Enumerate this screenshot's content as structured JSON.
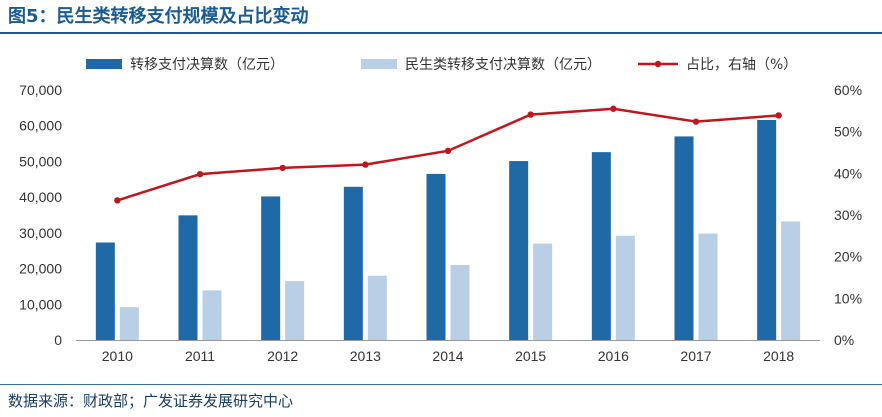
{
  "figure": {
    "title": "图5：民生类转移支付规模及占比变动",
    "source": "数据来源：财政部；广发证券发展研究中心"
  },
  "chart_data": {
    "type": "bar",
    "categories": [
      "2010",
      "2011",
      "2012",
      "2013",
      "2014",
      "2015",
      "2016",
      "2017",
      "2018"
    ],
    "series": [
      {
        "name": "转移支付决算数（亿元）",
        "type": "bar",
        "axis": "left",
        "color": "#1f69a6",
        "values": [
          27300,
          34900,
          40200,
          42900,
          46500,
          50100,
          52600,
          57000,
          61600
        ]
      },
      {
        "name": "民生类转移支付决算数（亿元）",
        "type": "bar",
        "axis": "left",
        "color": "#b9cfe6",
        "values": [
          9200,
          13900,
          16500,
          18000,
          21000,
          27000,
          29200,
          29800,
          33200
        ]
      },
      {
        "name": "占比，右轴（%）",
        "type": "line",
        "axis": "right",
        "color": "#c0161d",
        "values": [
          33.5,
          39.8,
          41.3,
          42.1,
          45.4,
          54.1,
          55.5,
          52.4,
          53.9
        ]
      }
    ],
    "y_left": {
      "min": 0,
      "max": 70000,
      "ticks": [
        "0",
        "10,000",
        "20,000",
        "30,000",
        "40,000",
        "50,000",
        "60,000",
        "70,000"
      ]
    },
    "y_right": {
      "min": 0,
      "max": 60,
      "ticks": [
        "0%",
        "10%",
        "20%",
        "30%",
        "40%",
        "50%",
        "60%"
      ]
    },
    "legend_position": "top",
    "grid": false
  }
}
